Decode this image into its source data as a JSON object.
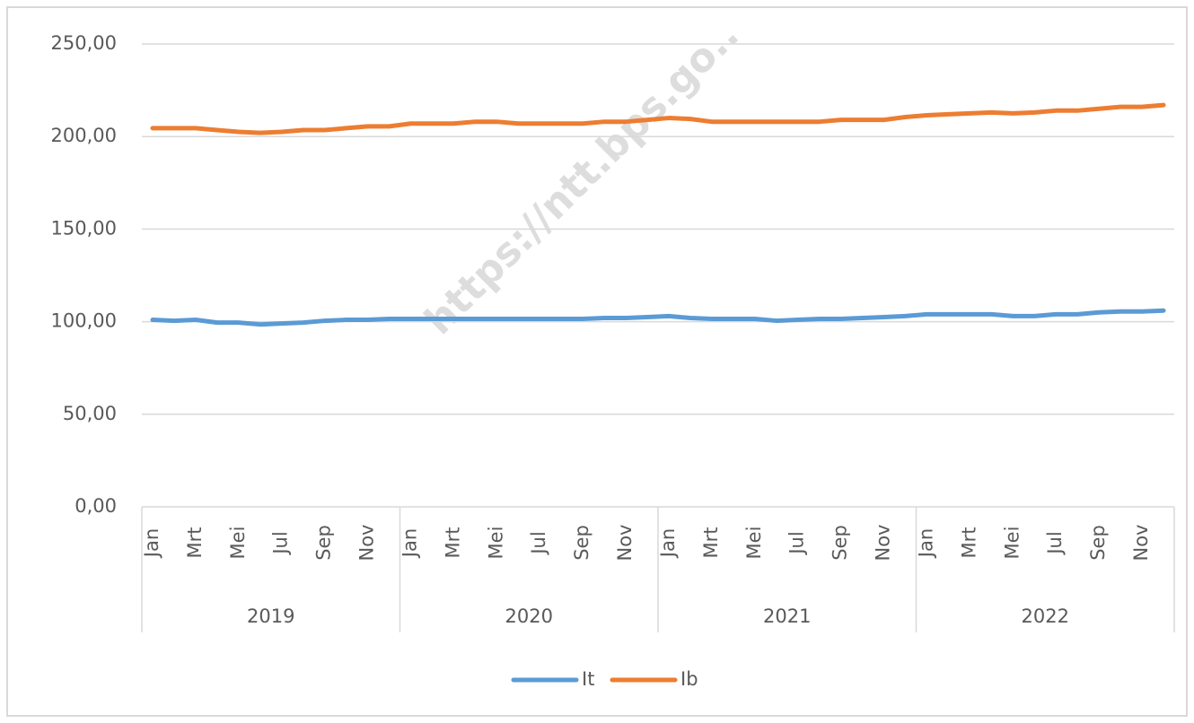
{
  "chart_data": {
    "type": "line",
    "watermark": "https://ntt.bps.go..",
    "categories": [
      "Jan",
      null,
      "Mrt",
      null,
      "Mei",
      null,
      "Jul",
      null,
      "Sep",
      null,
      "Nov",
      null,
      "Jan",
      null,
      "Mrt",
      null,
      "Mei",
      null,
      "Jul",
      null,
      "Sep",
      null,
      "Nov",
      null,
      "Jan",
      null,
      "Mrt",
      null,
      "Mei",
      null,
      "Jul",
      null,
      "Sep",
      null,
      "Nov",
      null,
      "Jan",
      null,
      "Mrt",
      null,
      "Mei",
      null,
      "Jul",
      null,
      "Sep",
      null,
      "Nov",
      null
    ],
    "groups": [
      "2019",
      "2020",
      "2021",
      "2022"
    ],
    "series": [
      {
        "name": "It",
        "color": "#5b9bd5",
        "values": [
          101,
          100.5,
          101,
          99.5,
          99.5,
          98.5,
          99,
          99.5,
          100.5,
          101,
          101,
          101.5,
          101.5,
          101.5,
          101.5,
          101.5,
          101.5,
          101.5,
          101.5,
          101.5,
          101.5,
          102,
          102,
          102.5,
          103,
          102,
          101.5,
          101.5,
          101.5,
          100.5,
          101,
          101.5,
          101.5,
          102,
          102.5,
          103,
          104,
          104,
          104,
          104,
          103,
          103,
          104,
          104,
          105,
          105.5,
          105.5,
          106
        ]
      },
      {
        "name": "Ib",
        "color": "#ed7d31",
        "values": [
          204.5,
          204.5,
          204.5,
          203.5,
          202.5,
          202,
          202.5,
          203.5,
          203.5,
          204.5,
          205.5,
          205.5,
          207,
          207,
          207,
          208,
          208,
          207,
          207,
          207,
          207,
          208,
          208,
          209,
          210,
          209.5,
          208,
          208,
          208,
          208,
          208,
          208,
          209,
          209,
          209,
          210.5,
          211.5,
          212,
          212.5,
          213,
          212.5,
          213,
          214,
          214,
          215,
          216,
          216,
          217
        ]
      }
    ],
    "ylim": [
      0,
      250
    ],
    "yticks": [
      {
        "value": 0,
        "label": "0,00"
      },
      {
        "value": 50,
        "label": "50,00"
      },
      {
        "value": 100,
        "label": "100,00"
      },
      {
        "value": 150,
        "label": "150,00"
      },
      {
        "value": 200,
        "label": "200,00"
      },
      {
        "value": 250,
        "label": "250,00"
      }
    ],
    "grid": true,
    "legend": "bottom"
  }
}
